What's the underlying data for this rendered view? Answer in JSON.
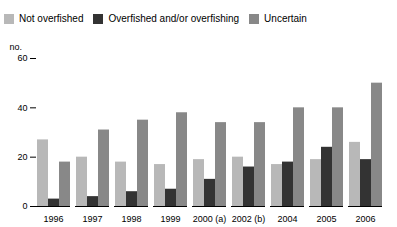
{
  "chart_data": {
    "type": "bar",
    "categories": [
      "1996",
      "1997",
      "1998",
      "1999",
      "2000 (a)",
      "2002 (b)",
      "2004",
      "2005",
      "2006"
    ],
    "series": [
      {
        "name": "Not overfished",
        "color": "#b8b8b8",
        "values": [
          27,
          20,
          18,
          17,
          19,
          20,
          17,
          19,
          26
        ]
      },
      {
        "name": "Overfished and/or overfishing",
        "color": "#333333",
        "values": [
          3,
          4,
          6,
          7,
          11,
          16,
          18,
          24,
          19
        ]
      },
      {
        "name": "Uncertain",
        "color": "#888888",
        "values": [
          18,
          31,
          35,
          38,
          34,
          34,
          40,
          40,
          50
        ]
      }
    ],
    "ylabel": "no.",
    "ylim": [
      0,
      60
    ],
    "yticks": [
      0,
      20,
      40,
      60
    ],
    "grid": false,
    "legend": "top"
  }
}
